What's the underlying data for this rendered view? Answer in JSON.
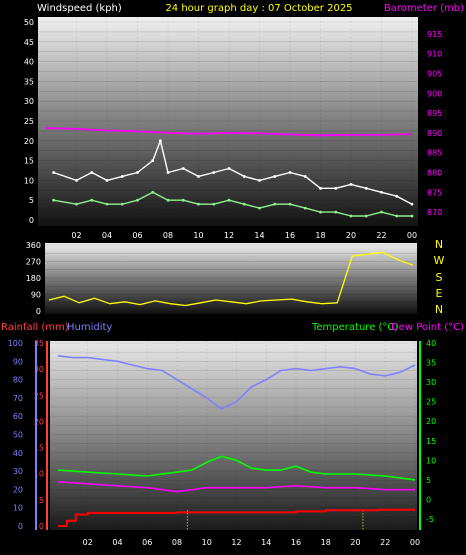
{
  "header": {
    "windspeed_label": "Windspeed (kph)",
    "graph_title": "24 hour graph day : 07 October 2025",
    "barometer_label": "Barometer (mb)"
  },
  "direction_labels": [
    "N",
    "W",
    "S",
    "E",
    "N"
  ],
  "bottom_labels": {
    "rainfall": "Rainfall (mm)",
    "humidity": "Humidity",
    "temperature": "Temperature (°C)",
    "dew_point": "Dew Point (°C)"
  },
  "colors": {
    "wind_gust": "#ffffff",
    "wind_avg": "#90ee90",
    "barometer": "#ff00ff",
    "direction": "#ffff00",
    "rain": "#ff0000",
    "humidity": "#8080ff",
    "temperature": "#00ff00",
    "dew_point": "#ff00ff",
    "axis_left": "#8080ff",
    "axis_rain": "#ff4040",
    "axis_right": "#00ff00"
  },
  "chart_data": [
    {
      "type": "line",
      "title": "24 hour graph day : 07 October 2025",
      "x_ticks": [
        "02",
        "04",
        "06",
        "08",
        "10",
        "12",
        "14",
        "16",
        "18",
        "20",
        "22",
        "00"
      ],
      "y_left_ticks": [
        "50",
        "45",
        "40",
        "35",
        "30",
        "25",
        "20",
        "15",
        "10",
        "5",
        "0"
      ],
      "y_right_ticks": [
        "915",
        "910",
        "905",
        "900",
        "895",
        "890",
        "885",
        "880",
        "875",
        "870"
      ],
      "y_left_label": "Windspeed (kph)",
      "y_right_label": "Barometer (mb)",
      "y_left_range": [
        0,
        50
      ],
      "y_right_range": [
        868,
        918
      ],
      "x_range_hours": [
        0,
        24
      ],
      "series": [
        {
          "name": "Windspeed (kph)",
          "axis": "left",
          "color": "#ffffff",
          "x": [
            0.5,
            2,
            3,
            4,
            5,
            6,
            7,
            7.5,
            8,
            9,
            10,
            11,
            12,
            13,
            14,
            15,
            16,
            17,
            18,
            19,
            20,
            21,
            22,
            23,
            24
          ],
          "y": [
            12,
            10,
            12,
            10,
            11,
            12,
            15,
            20,
            12,
            13,
            11,
            12,
            13,
            11,
            10,
            11,
            12,
            11,
            8,
            8,
            9,
            8,
            7,
            6,
            4
          ]
        },
        {
          "name": "Average Wind",
          "axis": "left",
          "color": "#90ee90",
          "x": [
            0.5,
            2,
            3,
            4,
            5,
            6,
            7,
            8,
            9,
            10,
            11,
            12,
            13,
            14,
            15,
            16,
            17,
            18,
            19,
            20,
            21,
            22,
            23,
            24
          ],
          "y": [
            5,
            4,
            5,
            4,
            4,
            5,
            7,
            5,
            5,
            4,
            4,
            5,
            4,
            3,
            4,
            4,
            3,
            2,
            2,
            1,
            1,
            2,
            1,
            1
          ]
        },
        {
          "name": "Barometer (mb)",
          "axis": "right",
          "color": "#ff00ff",
          "x": [
            0,
            2,
            4,
            6,
            8,
            10,
            12,
            14,
            16,
            18,
            20,
            22,
            24
          ],
          "y": [
            891.2,
            891.0,
            890.6,
            890.4,
            890.0,
            889.8,
            890.0,
            889.9,
            889.6,
            889.4,
            889.5,
            889.5,
            889.7
          ]
        }
      ]
    },
    {
      "type": "line",
      "title": "",
      "x_ticks": [
        "02",
        "04",
        "06",
        "08",
        "10",
        "12",
        "14",
        "16",
        "18",
        "20",
        "22",
        "00"
      ],
      "y_left_ticks": [
        "360",
        "315",
        "270",
        "225",
        "180",
        "135",
        "90",
        "45",
        "0"
      ],
      "y_left_range": [
        0,
        360
      ],
      "series": [
        {
          "axis": "left",
          "color": "#ffff00",
          "x": [
            0,
            1,
            2,
            3,
            4,
            5,
            6,
            7,
            8,
            9,
            10,
            11,
            12,
            13,
            14,
            15,
            16,
            17,
            18,
            19,
            20,
            21,
            22,
            23,
            24
          ],
          "y": [
            60,
            80,
            45,
            70,
            40,
            50,
            35,
            55,
            40,
            30,
            45,
            60,
            50,
            40,
            55,
            60,
            65,
            50,
            40,
            45,
            300,
            310,
            320,
            280,
            250
          ]
        }
      ]
    },
    {
      "type": "line",
      "title": "",
      "x_ticks": [
        "02",
        "04",
        "06",
        "08",
        "10",
        "12",
        "14",
        "16",
        "18",
        "20",
        "22",
        "00"
      ],
      "y_humidity_ticks": [
        "100",
        "90",
        "80",
        "70",
        "60",
        "50",
        "40",
        "30",
        "20",
        "10",
        "0"
      ],
      "y_rain_ticks": [
        "35",
        "30",
        "25",
        "20",
        "15",
        "10",
        "5",
        "0"
      ],
      "y_right_ticks": [
        "40",
        "35",
        "30",
        "25",
        "20",
        "15",
        "10",
        "5",
        "0",
        "-5"
      ],
      "y_humidity_range": [
        0,
        100
      ],
      "y_rain_range": [
        0,
        35
      ],
      "y_right_range": [
        -5,
        40
      ],
      "series": [
        {
          "name": "Humidity",
          "axis": "humidity",
          "color": "#8080ff",
          "x": [
            0,
            1,
            2,
            3,
            4,
            5,
            6,
            7,
            8,
            9,
            10,
            11,
            12,
            13,
            14,
            15,
            16,
            17,
            18,
            19,
            20,
            21,
            22,
            23,
            24
          ],
          "y": [
            93,
            92,
            92,
            91,
            90,
            88,
            86,
            85,
            80,
            75,
            70,
            64,
            68,
            76,
            80,
            85,
            86,
            85,
            86,
            87,
            86,
            83,
            82,
            84,
            88
          ]
        },
        {
          "name": "Temperature (°C)",
          "axis": "right",
          "color": "#00ff00",
          "x": [
            0,
            2,
            4,
            6,
            8,
            9,
            10,
            11,
            12,
            13,
            14,
            15,
            16,
            17,
            18,
            20,
            22,
            24
          ],
          "y": [
            7.5,
            7,
            6.5,
            6,
            7,
            7.5,
            9.5,
            11,
            10,
            8,
            7.5,
            7.5,
            8.5,
            7,
            6.5,
            6.5,
            6,
            5
          ]
        },
        {
          "name": "Dew Point (°C)",
          "axis": "right",
          "color": "#ff00ff",
          "x": [
            0,
            2,
            4,
            6,
            8,
            10,
            12,
            14,
            16,
            18,
            20,
            22,
            24
          ],
          "y": [
            4.5,
            4,
            3.5,
            3,
            2,
            3,
            3,
            3,
            3.5,
            3,
            3,
            2.5,
            2.5
          ]
        },
        {
          "name": "Rainfall (mm)",
          "axis": "rain",
          "color": "#ff0000",
          "x": [
            0,
            0.6,
            1.2,
            2,
            8,
            15.5,
            16,
            18,
            21.5,
            24
          ],
          "y": [
            0,
            1,
            2.2,
            2.5,
            2.6,
            2.6,
            2.8,
            3.0,
            3.1,
            3.1
          ]
        }
      ]
    }
  ]
}
